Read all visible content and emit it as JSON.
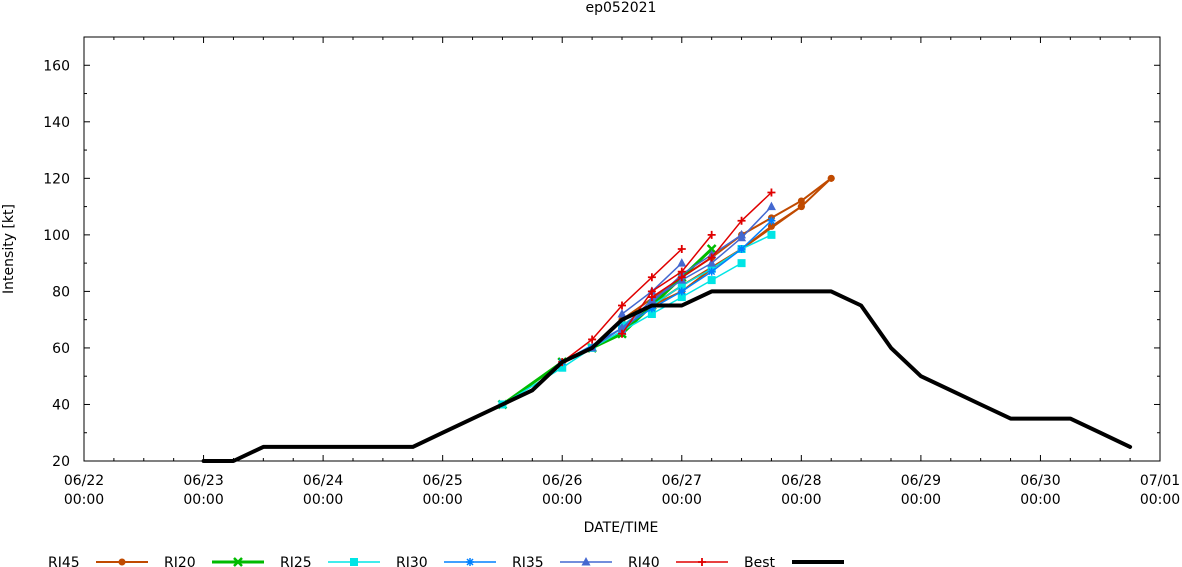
{
  "chart_data": {
    "type": "line",
    "title": "ep052021",
    "xlabel": "DATE/TIME",
    "ylabel": "Intensity [kt]",
    "xlim": [
      "2021-06-22 00:00",
      "2021-07-01 00:00"
    ],
    "ylim": [
      20,
      170
    ],
    "x_ticks": [
      {
        "x": "2021-06-22 00:00",
        "date": "06/22",
        "time": "00:00"
      },
      {
        "x": "2021-06-23 00:00",
        "date": "06/23",
        "time": "00:00"
      },
      {
        "x": "2021-06-24 00:00",
        "date": "06/24",
        "time": "00:00"
      },
      {
        "x": "2021-06-25 00:00",
        "date": "06/25",
        "time": "00:00"
      },
      {
        "x": "2021-06-26 00:00",
        "date": "06/26",
        "time": "00:00"
      },
      {
        "x": "2021-06-27 00:00",
        "date": "06/27",
        "time": "00:00"
      },
      {
        "x": "2021-06-28 00:00",
        "date": "06/28",
        "time": "00:00"
      },
      {
        "x": "2021-06-29 00:00",
        "date": "06/29",
        "time": "00:00"
      },
      {
        "x": "2021-06-30 00:00",
        "date": "06/30",
        "time": "00:00"
      },
      {
        "x": "2021-07-01 00:00",
        "date": "07/01",
        "time": "00:00"
      }
    ],
    "y_ticks": [
      "20",
      "40",
      "60",
      "80",
      "100",
      "120",
      "140",
      "160"
    ],
    "legend_position": "bottom",
    "series": [
      {
        "name": "RI45",
        "color": "#c04a00",
        "marker": "circle",
        "width": 2,
        "runs": [
          [
            [
              "2021-06-25 12:00",
              40
            ],
            [
              "2021-06-26 00:00",
              55
            ],
            [
              "2021-06-26 06:00",
              60
            ],
            [
              "2021-06-26 12:00",
              65
            ],
            [
              "2021-06-26 18:00",
              75
            ],
            [
              "2021-06-27 00:00",
              80
            ],
            [
              "2021-06-27 06:00",
              88
            ],
            [
              "2021-06-27 12:00",
              95
            ],
            [
              "2021-06-27 18:00",
              103
            ],
            [
              "2021-06-28 00:00",
              110
            ]
          ],
          [
            [
              "2021-06-26 12:00",
              70
            ],
            [
              "2021-06-27 00:00",
              85
            ],
            [
              "2021-06-27 06:00",
              92
            ],
            [
              "2021-06-27 12:00",
              100
            ],
            [
              "2021-06-27 18:00",
              106
            ],
            [
              "2021-06-28 00:00",
              112
            ],
            [
              "2021-06-28 06:00",
              120
            ]
          ],
          [
            [
              "2021-06-26 12:00",
              65
            ],
            [
              "2021-06-26 18:00",
              75
            ],
            [
              "2021-06-27 00:00",
              82
            ],
            [
              "2021-06-27 12:00",
              95
            ],
            [
              "2021-06-28 00:00",
              110
            ],
            [
              "2021-06-28 06:00",
              120
            ]
          ]
        ]
      },
      {
        "name": "RI20",
        "color": "#00bb00",
        "marker": "x",
        "width": 3,
        "runs": [
          [
            [
              "2021-06-25 12:00",
              40
            ],
            [
              "2021-06-26 00:00",
              55
            ],
            [
              "2021-06-26 06:00",
              60
            ],
            [
              "2021-06-26 12:00",
              65
            ],
            [
              "2021-06-26 18:00",
              75
            ],
            [
              "2021-06-27 00:00",
              85
            ],
            [
              "2021-06-27 06:00",
              95
            ]
          ]
        ]
      },
      {
        "name": "RI25",
        "color": "#00e5e5",
        "marker": "square",
        "width": 1.5,
        "runs": [
          [
            [
              "2021-06-25 12:00",
              40
            ],
            [
              "2021-06-26 00:00",
              53
            ],
            [
              "2021-06-26 06:00",
              60
            ],
            [
              "2021-06-26 12:00",
              66
            ],
            [
              "2021-06-26 18:00",
              72
            ],
            [
              "2021-06-27 00:00",
              78
            ],
            [
              "2021-06-27 06:00",
              84
            ],
            [
              "2021-06-27 12:00",
              90
            ]
          ],
          [
            [
              "2021-06-26 12:00",
              68
            ],
            [
              "2021-06-26 18:00",
              75
            ],
            [
              "2021-06-27 00:00",
              82
            ],
            [
              "2021-06-27 06:00",
              88
            ],
            [
              "2021-06-27 12:00",
              95
            ],
            [
              "2021-06-27 18:00",
              100
            ]
          ]
        ]
      },
      {
        "name": "RI30",
        "color": "#0080ff",
        "marker": "star",
        "width": 1.5,
        "runs": [
          [
            [
              "2021-06-26 00:00",
              55
            ],
            [
              "2021-06-26 12:00",
              67
            ],
            [
              "2021-06-26 18:00",
              74
            ],
            [
              "2021-06-27 00:00",
              80
            ],
            [
              "2021-06-27 06:00",
              87
            ],
            [
              "2021-06-27 12:00",
              95
            ],
            [
              "2021-06-27 18:00",
              105
            ]
          ]
        ]
      },
      {
        "name": "RI35",
        "color": "#4468d0",
        "marker": "triangle",
        "width": 1.5,
        "runs": [
          [
            [
              "2021-06-26 06:00",
              60
            ],
            [
              "2021-06-26 12:00",
              67
            ],
            [
              "2021-06-26 18:00",
              77
            ],
            [
              "2021-06-27 00:00",
              84
            ],
            [
              "2021-06-27 06:00",
              90
            ],
            [
              "2021-06-27 12:00",
              99
            ],
            [
              "2021-06-27 18:00",
              110
            ]
          ],
          [
            [
              "2021-06-26 12:00",
              72
            ],
            [
              "2021-06-26 18:00",
              80
            ],
            [
              "2021-06-27 00:00",
              90
            ]
          ],
          [
            [
              "2021-06-26 12:00",
              66
            ],
            [
              "2021-06-26 18:00",
              76
            ],
            [
              "2021-06-27 00:00",
              86
            ],
            [
              "2021-06-27 06:00",
              93
            ],
            [
              "2021-06-27 12:00",
              100
            ]
          ]
        ]
      },
      {
        "name": "RI40",
        "color": "#e00000",
        "marker": "plus",
        "width": 1.5,
        "runs": [
          [
            [
              "2021-06-26 00:00",
              55
            ],
            [
              "2021-06-26 06:00",
              63
            ],
            [
              "2021-06-26 12:00",
              75
            ],
            [
              "2021-06-26 18:00",
              85
            ],
            [
              "2021-06-27 00:00",
              95
            ]
          ],
          [
            [
              "2021-06-26 12:00",
              65
            ],
            [
              "2021-06-26 18:00",
              80
            ],
            [
              "2021-06-27 00:00",
              87
            ],
            [
              "2021-06-27 06:00",
              100
            ]
          ],
          [
            [
              "2021-06-26 18:00",
              78
            ],
            [
              "2021-06-27 00:00",
              85
            ],
            [
              "2021-06-27 06:00",
              92
            ],
            [
              "2021-06-27 12:00",
              105
            ],
            [
              "2021-06-27 18:00",
              115
            ]
          ]
        ]
      },
      {
        "name": "Best",
        "color": "#000000",
        "marker": "none",
        "width": 4,
        "runs": [
          [
            [
              "2021-06-23 00:00",
              20
            ],
            [
              "2021-06-23 06:00",
              20
            ],
            [
              "2021-06-23 12:00",
              25
            ],
            [
              "2021-06-24 00:00",
              25
            ],
            [
              "2021-06-24 18:00",
              25
            ],
            [
              "2021-06-25 00:00",
              30
            ],
            [
              "2021-06-25 12:00",
              40
            ],
            [
              "2021-06-25 18:00",
              45
            ],
            [
              "2021-06-26 00:00",
              55
            ],
            [
              "2021-06-26 06:00",
              60
            ],
            [
              "2021-06-26 12:00",
              70
            ],
            [
              "2021-06-26 18:00",
              75
            ],
            [
              "2021-06-27 00:00",
              75
            ],
            [
              "2021-06-27 06:00",
              80
            ],
            [
              "2021-06-27 12:00",
              80
            ],
            [
              "2021-06-27 18:00",
              80
            ],
            [
              "2021-06-28 00:00",
              80
            ],
            [
              "2021-06-28 06:00",
              80
            ],
            [
              "2021-06-28 12:00",
              75
            ],
            [
              "2021-06-28 18:00",
              60
            ],
            [
              "2021-06-29 00:00",
              50
            ],
            [
              "2021-06-29 06:00",
              45
            ],
            [
              "2021-06-29 12:00",
              40
            ],
            [
              "2021-06-29 18:00",
              35
            ],
            [
              "2021-06-30 00:00",
              35
            ],
            [
              "2021-06-30 06:00",
              35
            ],
            [
              "2021-06-30 12:00",
              30
            ],
            [
              "2021-06-30 18:00",
              25
            ]
          ]
        ]
      }
    ]
  }
}
